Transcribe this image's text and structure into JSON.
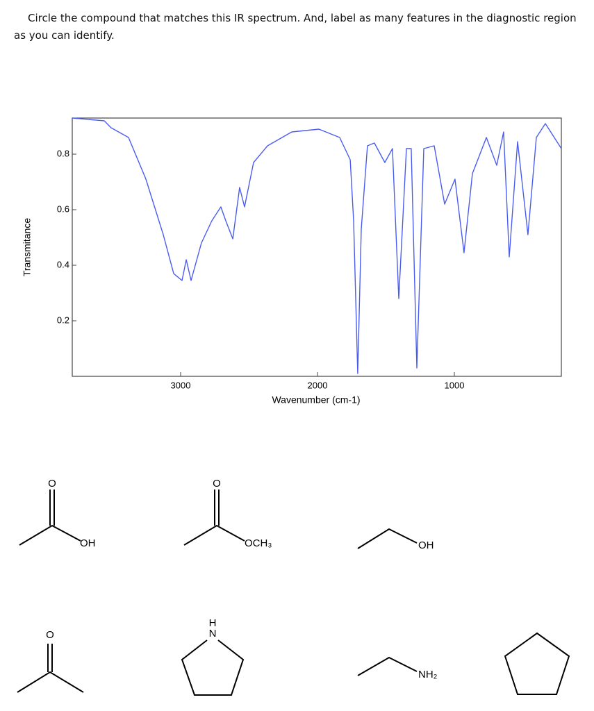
{
  "question": "Circle the compound that matches this IR spectrum.  And, label as many features in the diagnostic region as you can identify.",
  "chart_data": {
    "type": "line",
    "x_label": "Wavenumber (cm-1)",
    "y_label": "Transmitance",
    "x": [
      3792,
      3558,
      3508,
      3381,
      3254,
      3127,
      3051,
      2990,
      2959,
      2924,
      2848,
      2772,
      2706,
      2670,
      2619,
      2569,
      2533,
      2467,
      2365,
      2188,
      1990,
      1838,
      1761,
      1736,
      1706,
      1680,
      1635,
      1584,
      1508,
      1452,
      1406,
      1350,
      1315,
      1274,
      1223,
      1147,
      1071,
      995,
      929,
      868,
      766,
      690,
      640,
      599,
      538,
      462,
      401,
      335,
      218
    ],
    "values": [
      0.93,
      0.92,
      0.895,
      0.86,
      0.71,
      0.51,
      0.37,
      0.345,
      0.42,
      0.345,
      0.48,
      0.56,
      0.61,
      0.56,
      0.495,
      0.68,
      0.61,
      0.77,
      0.83,
      0.88,
      0.89,
      0.86,
      0.78,
      0.56,
      0.01,
      0.53,
      0.83,
      0.84,
      0.77,
      0.82,
      0.28,
      0.82,
      0.82,
      0.03,
      0.82,
      0.83,
      0.62,
      0.71,
      0.445,
      0.73,
      0.86,
      0.76,
      0.88,
      0.43,
      0.845,
      0.51,
      0.86,
      0.91,
      0.82
    ],
    "color": "#4a5cf0",
    "xlim": [
      3792,
      218
    ],
    "xticks": [
      3000,
      2000,
      1000
    ],
    "ylim": [
      0,
      0.93
    ],
    "yticks": [
      0.2,
      0.4,
      0.6,
      0.8
    ]
  },
  "structure_labels": [
    [
      "O",
      "OH"
    ],
    [
      "O",
      "OCH₃"
    ],
    [
      "OH"
    ],
    [
      "O"
    ],
    [
      "H",
      "N"
    ],
    [
      "NH₂"
    ]
  ]
}
